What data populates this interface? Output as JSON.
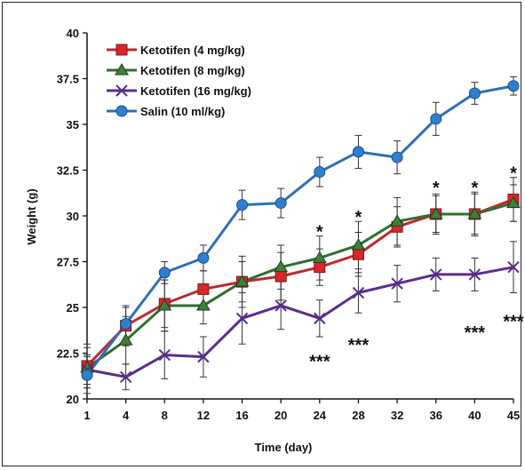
{
  "chart_data": {
    "type": "line",
    "title": "",
    "xlabel": "Time (day)",
    "ylabel": "Weight (g)",
    "x": [
      1,
      4,
      8,
      12,
      16,
      20,
      24,
      28,
      32,
      36,
      40,
      45
    ],
    "x_tick_labels": [
      "1",
      "4",
      "8",
      "12",
      "16",
      "20",
      "24",
      "28",
      "32",
      "36",
      "40",
      "45"
    ],
    "ylim": [
      20,
      40
    ],
    "y_ticks": [
      20,
      22.5,
      25,
      27.5,
      30,
      32.5,
      35,
      37.5,
      40
    ],
    "y_tick_labels": [
      "20",
      "22.5",
      "25",
      "27.5",
      "30",
      "32.5",
      "35",
      "37.5",
      "40"
    ],
    "grid": false,
    "legend_position": "top-left",
    "series": [
      {
        "name": "Ketotifen (4 mg/kg)",
        "color": "#c0282d",
        "marker": "square",
        "values": [
          21.8,
          24.0,
          25.2,
          26.0,
          26.4,
          26.7,
          27.2,
          27.9,
          29.4,
          30.1,
          30.1,
          30.9
        ],
        "errors": [
          1.2,
          1.1,
          1.3,
          1.0,
          1.1,
          1.3,
          1.0,
          1.2,
          1.1,
          1.0,
          1.1,
          1.2
        ]
      },
      {
        "name": "Ketotifen (8 mg/kg)",
        "color": "#2f6e2f",
        "marker": "triangle",
        "values": [
          21.7,
          23.2,
          25.1,
          25.1,
          26.4,
          27.2,
          27.7,
          28.4,
          29.7,
          30.1,
          30.1,
          30.7
        ],
        "errors": [
          1.1,
          1.3,
          1.4,
          1.0,
          1.4,
          1.2,
          1.2,
          1.3,
          1.3,
          1.1,
          1.2,
          1.0
        ]
      },
      {
        "name": "Ketotifen (16 mg/kg)",
        "color": "#5a2d8c",
        "marker": "cross",
        "values": [
          21.6,
          21.2,
          22.4,
          22.3,
          24.4,
          25.1,
          24.4,
          25.8,
          26.3,
          26.8,
          26.8,
          27.2
        ],
        "errors": [
          0.8,
          0.7,
          1.3,
          1.1,
          1.4,
          1.3,
          1.0,
          1.1,
          1.0,
          0.9,
          0.9,
          1.4
        ]
      },
      {
        "name": "Salin (10 ml/kg)",
        "color": "#2f6fb6",
        "marker": "circle",
        "values": [
          21.3,
          24.1,
          26.9,
          27.7,
          30.6,
          30.7,
          32.4,
          33.5,
          33.2,
          35.3,
          36.7,
          37.1
        ],
        "errors": [
          1.0,
          0.9,
          0.6,
          0.7,
          0.8,
          0.8,
          0.8,
          0.9,
          0.9,
          0.9,
          0.6,
          0.5
        ]
      }
    ],
    "annotations": [
      {
        "text": "*",
        "x": 24,
        "y": 29.2
      },
      {
        "text": "*",
        "x": 28,
        "y": 30.0
      },
      {
        "text": "*",
        "x": 36,
        "y": 31.6
      },
      {
        "text": "*",
        "x": 40,
        "y": 31.6
      },
      {
        "text": "*",
        "x": 45,
        "y": 32.4
      },
      {
        "text": "***",
        "x": 24,
        "y": 22.1
      },
      {
        "text": "***",
        "x": 28,
        "y": 23.0
      },
      {
        "text": "***",
        "x": 40,
        "y": 23.7
      },
      {
        "text": "***",
        "x": 45,
        "y": 24.3
      }
    ]
  }
}
